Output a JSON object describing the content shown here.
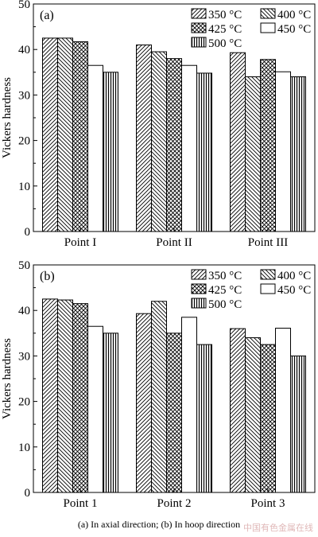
{
  "caption": "(a)  In  axial  direction; (b) In hoop direction",
  "watermark": "中国有色金属在线",
  "colors": {
    "axis": "#000000",
    "bar_fill": "#ffffff"
  },
  "chart_data": [
    {
      "type": "bar",
      "panel_label": "(a)",
      "ylabel": "Vickers hardness",
      "ylim": [
        0,
        50
      ],
      "yticks": [
        0,
        10,
        20,
        30,
        40,
        50
      ],
      "categories": [
        "Point I",
        "Point II",
        "Point III"
      ],
      "legend_placement": "top-right",
      "series": [
        {
          "name": "350 °C",
          "pattern": "diagonal-up",
          "values": [
            42.5,
            41,
            39.3
          ]
        },
        {
          "name": "400 °C",
          "pattern": "diagonal-down",
          "values": [
            42.5,
            39.5,
            34
          ]
        },
        {
          "name": "425 °C",
          "pattern": "crosshatch",
          "values": [
            41.7,
            38,
            37.8
          ]
        },
        {
          "name": "450 °C",
          "pattern": "blank",
          "values": [
            36.5,
            36.5,
            35.1
          ]
        },
        {
          "name": "500 °C",
          "pattern": "vertical",
          "values": [
            35,
            34.8,
            34
          ]
        }
      ]
    },
    {
      "type": "bar",
      "panel_label": "(b)",
      "ylabel": "Vickers hardness",
      "ylim": [
        0,
        50
      ],
      "yticks": [
        0,
        10,
        20,
        30,
        40,
        50
      ],
      "categories": [
        "Point 1",
        "Point 2",
        "Point 3"
      ],
      "legend_placement": "top-right",
      "series": [
        {
          "name": "350 °C",
          "pattern": "diagonal-up",
          "values": [
            42.5,
            39.3,
            36
          ]
        },
        {
          "name": "400 °C",
          "pattern": "diagonal-down",
          "values": [
            42.3,
            42,
            34
          ]
        },
        {
          "name": "425 °C",
          "pattern": "crosshatch",
          "values": [
            41.5,
            35,
            32.5
          ]
        },
        {
          "name": "450 °C",
          "pattern": "blank",
          "values": [
            36.5,
            38.5,
            36.1
          ]
        },
        {
          "name": "500 °C",
          "pattern": "vertical",
          "values": [
            35,
            32.5,
            30
          ]
        }
      ]
    }
  ]
}
